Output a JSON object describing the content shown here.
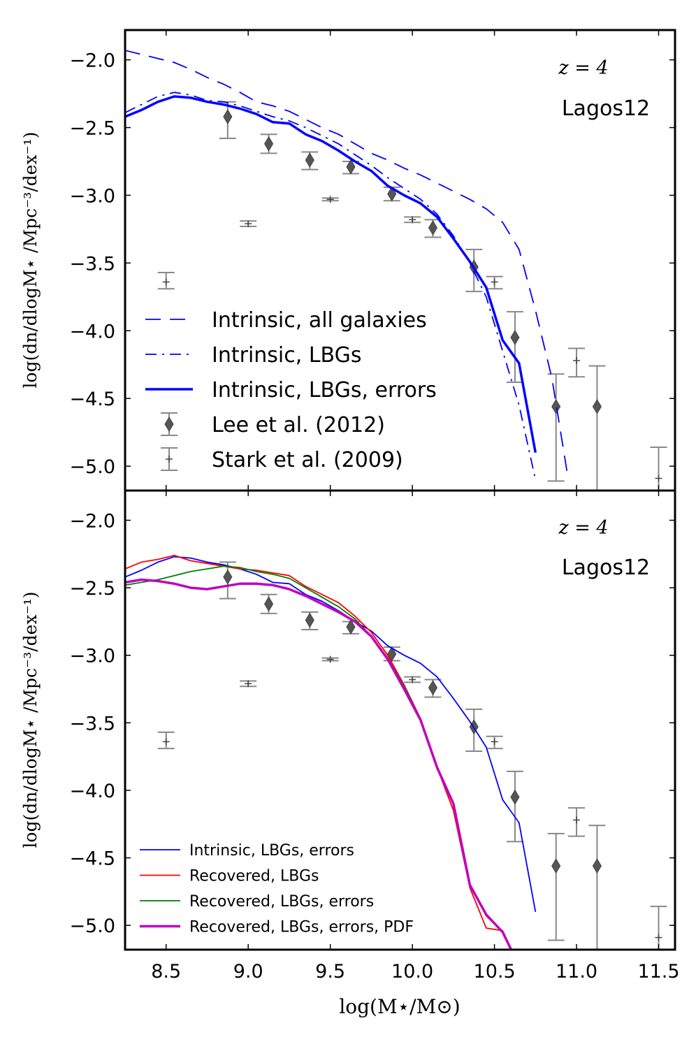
{
  "chart_data": [
    {
      "type": "line",
      "panel": "top",
      "xlim": [
        8.25,
        11.6
      ],
      "ylim": [
        -5.18,
        -1.78
      ],
      "xticks": [
        "8.5",
        "9.0",
        "9.5",
        "10.0",
        "10.5",
        "11.0",
        "11.5"
      ],
      "xtick_values": [
        8.5,
        9.0,
        9.5,
        10.0,
        10.5,
        11.0,
        11.5
      ],
      "yticks": [
        "−2.0",
        "−2.5",
        "−3.0",
        "−3.5",
        "−4.0",
        "−4.5",
        "−5.0"
      ],
      "ytick_values": [
        -2.0,
        -2.5,
        -3.0,
        -3.5,
        -4.0,
        -4.5,
        -5.0
      ],
      "ylabel": "log(dn/dlogM⋆ /Mpc⁻³/dex⁻¹)",
      "annotation_redshift": "z = 4",
      "annotation_model": "Lagos12",
      "series": [
        {
          "name": "Intrinsic, all galaxies",
          "color": "#0000ff",
          "style": "dashed",
          "width": 1.8,
          "x": [
            8.25,
            8.35,
            8.45,
            8.55,
            8.65,
            8.75,
            8.85,
            8.95,
            9.05,
            9.15,
            9.25,
            9.35,
            9.45,
            9.55,
            9.65,
            9.75,
            9.85,
            9.95,
            10.05,
            10.15,
            10.25,
            10.35,
            10.45,
            10.55,
            10.65,
            10.75,
            10.85,
            10.95
          ],
          "y": [
            -1.93,
            -1.96,
            -1.99,
            -2.02,
            -2.07,
            -2.13,
            -2.18,
            -2.24,
            -2.31,
            -2.34,
            -2.38,
            -2.44,
            -2.5,
            -2.55,
            -2.62,
            -2.69,
            -2.74,
            -2.8,
            -2.85,
            -2.91,
            -2.97,
            -3.03,
            -3.1,
            -3.2,
            -3.4,
            -3.85,
            -4.35,
            -5.1
          ]
        },
        {
          "name": "Intrinsic, LBGs",
          "color": "#0000ff",
          "style": "dashdot",
          "width": 1.8,
          "x": [
            8.25,
            8.35,
            8.45,
            8.55,
            8.65,
            8.75,
            8.85,
            8.95,
            9.05,
            9.15,
            9.25,
            9.35,
            9.45,
            9.55,
            9.65,
            9.75,
            9.85,
            9.95,
            10.05,
            10.15,
            10.25,
            10.35,
            10.45,
            10.55,
            10.65,
            10.75
          ],
          "y": [
            -2.39,
            -2.33,
            -2.27,
            -2.24,
            -2.26,
            -2.3,
            -2.31,
            -2.34,
            -2.38,
            -2.42,
            -2.45,
            -2.5,
            -2.56,
            -2.62,
            -2.7,
            -2.78,
            -2.87,
            -2.95,
            -3.03,
            -3.14,
            -3.3,
            -3.5,
            -3.75,
            -4.15,
            -4.55,
            -5.1
          ]
        },
        {
          "name": "Intrinsic, LBGs, errors",
          "color": "#0000ff",
          "style": "solid",
          "width": 3.5,
          "x": [
            8.25,
            8.35,
            8.45,
            8.55,
            8.65,
            8.75,
            8.85,
            8.95,
            9.05,
            9.15,
            9.25,
            9.35,
            9.45,
            9.55,
            9.65,
            9.75,
            9.85,
            9.95,
            10.05,
            10.15,
            10.25,
            10.35,
            10.45,
            10.55,
            10.65,
            10.75
          ],
          "y": [
            -2.42,
            -2.37,
            -2.31,
            -2.27,
            -2.28,
            -2.31,
            -2.33,
            -2.36,
            -2.4,
            -2.46,
            -2.47,
            -2.55,
            -2.6,
            -2.67,
            -2.75,
            -2.82,
            -2.93,
            -3.0,
            -3.06,
            -3.16,
            -3.32,
            -3.49,
            -3.68,
            -4.07,
            -4.24,
            -4.9
          ]
        }
      ],
      "errorbar_series": [
        {
          "name": "Lee et al. (2012)",
          "marker": "diamond",
          "color": "#555555",
          "x": [
            8.875,
            9.125,
            9.375,
            9.625,
            9.875,
            10.125,
            10.375,
            10.625,
            10.875,
            11.125
          ],
          "y": [
            -2.42,
            -2.62,
            -2.74,
            -2.79,
            -2.99,
            -3.24,
            -3.53,
            -4.05,
            -4.56,
            -4.56
          ],
          "yerr_low": [
            0.16,
            0.07,
            0.07,
            0.05,
            0.05,
            0.07,
            0.18,
            0.33,
            0.55,
            0.7
          ],
          "yerr_high": [
            0.11,
            0.07,
            0.06,
            0.04,
            0.05,
            0.06,
            0.13,
            0.19,
            0.24,
            0.3
          ]
        },
        {
          "name": "Stark et al. (2009)",
          "marker": "plus",
          "color": "#555555",
          "x": [
            8.5,
            9.0,
            9.5,
            10.0,
            10.5,
            11.0,
            11.5
          ],
          "y": [
            -3.64,
            -3.21,
            -3.03,
            -3.18,
            -3.64,
            -4.22,
            -5.09
          ],
          "yerr_low": [
            0.05,
            0.02,
            0.01,
            0.02,
            0.05,
            0.12,
            0.25
          ],
          "yerr_high": [
            0.07,
            0.02,
            0.01,
            0.02,
            0.04,
            0.09,
            0.23
          ]
        }
      ],
      "legend": {
        "placement": "lower-left",
        "entries": [
          "Intrinsic, all galaxies",
          "Intrinsic, LBGs",
          "Intrinsic, LBGs, errors",
          "Lee et al. (2012)",
          "Stark et al. (2009)"
        ]
      }
    },
    {
      "type": "line",
      "panel": "bottom",
      "xlim": [
        8.25,
        11.6
      ],
      "ylim": [
        -5.18,
        -1.78
      ],
      "xticks": [
        "8.5",
        "9.0",
        "9.5",
        "10.0",
        "10.5",
        "11.0",
        "11.5"
      ],
      "xtick_values": [
        8.5,
        9.0,
        9.5,
        10.0,
        10.5,
        11.0,
        11.5
      ],
      "yticks": [
        "−2.0",
        "−2.5",
        "−3.0",
        "−3.5",
        "−4.0",
        "−4.5",
        "−5.0"
      ],
      "ytick_values": [
        -2.0,
        -2.5,
        -3.0,
        -3.5,
        -4.0,
        -4.5,
        -5.0
      ],
      "xlabel": "log(M⋆/M⊙)",
      "ylabel": "log(dn/dlogM⋆ /Mpc⁻³/dex⁻¹)",
      "annotation_redshift": "z = 4",
      "annotation_model": "Lagos12",
      "series": [
        {
          "name": "Intrinsic, LBGs, errors",
          "color": "#0000ff",
          "style": "solid",
          "width": 1.8,
          "x": [
            8.25,
            8.35,
            8.45,
            8.55,
            8.65,
            8.75,
            8.85,
            8.95,
            9.05,
            9.15,
            9.25,
            9.35,
            9.45,
            9.55,
            9.65,
            9.75,
            9.85,
            9.95,
            10.05,
            10.15,
            10.25,
            10.35,
            10.45,
            10.55,
            10.65,
            10.75
          ],
          "y": [
            -2.42,
            -2.37,
            -2.31,
            -2.27,
            -2.28,
            -2.31,
            -2.33,
            -2.36,
            -2.4,
            -2.46,
            -2.47,
            -2.55,
            -2.6,
            -2.67,
            -2.75,
            -2.82,
            -2.93,
            -3.0,
            -3.06,
            -3.16,
            -3.32,
            -3.49,
            -3.68,
            -4.07,
            -4.24,
            -4.9
          ]
        },
        {
          "name": "Recovered, LBGs",
          "color": "#ff0000",
          "style": "solid",
          "width": 1.8,
          "x": [
            8.25,
            8.35,
            8.45,
            8.55,
            8.65,
            8.75,
            8.85,
            8.95,
            9.05,
            9.15,
            9.25,
            9.35,
            9.45,
            9.55,
            9.65,
            9.75,
            9.85,
            9.95,
            10.05,
            10.15,
            10.25,
            10.35,
            10.45,
            10.55,
            10.65
          ],
          "y": [
            -2.36,
            -2.31,
            -2.29,
            -2.26,
            -2.3,
            -2.32,
            -2.34,
            -2.36,
            -2.37,
            -2.39,
            -2.41,
            -2.49,
            -2.55,
            -2.61,
            -2.71,
            -2.83,
            -3.0,
            -3.22,
            -3.47,
            -3.83,
            -4.15,
            -4.72,
            -5.02,
            -5.04,
            -5.3
          ]
        },
        {
          "name": "Recovered, LBGs, errors",
          "color": "#008000",
          "style": "solid",
          "width": 1.8,
          "x": [
            8.25,
            8.35,
            8.45,
            8.55,
            8.65,
            8.75,
            8.85,
            8.95,
            9.05,
            9.15,
            9.25,
            9.35,
            9.45,
            9.55,
            9.65,
            9.75,
            9.85,
            9.95,
            10.05,
            10.15,
            10.25,
            10.35,
            10.45,
            10.55,
            10.65
          ],
          "y": [
            -2.48,
            -2.46,
            -2.44,
            -2.41,
            -2.38,
            -2.36,
            -2.34,
            -2.35,
            -2.38,
            -2.4,
            -2.43,
            -2.5,
            -2.57,
            -2.64,
            -2.73,
            -2.86,
            -3.02,
            -3.23,
            -3.47,
            -3.83,
            -4.1,
            -4.7,
            -4.93,
            -5.05,
            -5.3
          ]
        },
        {
          "name": "Recovered, LBGs, errors, PDF",
          "color": "#c000c0",
          "style": "solid",
          "width": 3.5,
          "x": [
            8.25,
            8.35,
            8.45,
            8.55,
            8.65,
            8.75,
            8.85,
            8.95,
            9.05,
            9.15,
            9.25,
            9.35,
            9.45,
            9.55,
            9.65,
            9.75,
            9.85,
            9.95,
            10.05,
            10.15,
            10.25,
            10.35,
            10.45,
            10.55,
            10.65
          ],
          "y": [
            -2.46,
            -2.44,
            -2.45,
            -2.47,
            -2.5,
            -2.51,
            -2.49,
            -2.47,
            -2.47,
            -2.48,
            -2.51,
            -2.56,
            -2.62,
            -2.68,
            -2.75,
            -2.86,
            -3.03,
            -3.25,
            -3.48,
            -3.83,
            -4.1,
            -4.7,
            -4.92,
            -5.05,
            -5.3
          ]
        }
      ],
      "errorbar_series": [
        {
          "name": "Lee et al. (2012)",
          "marker": "diamond",
          "color": "#555555",
          "x": [
            8.875,
            9.125,
            9.375,
            9.625,
            9.875,
            10.125,
            10.375,
            10.625,
            10.875,
            11.125
          ],
          "y": [
            -2.42,
            -2.62,
            -2.74,
            -2.79,
            -2.99,
            -3.24,
            -3.53,
            -4.05,
            -4.56,
            -4.56
          ],
          "yerr_low": [
            0.16,
            0.07,
            0.07,
            0.05,
            0.05,
            0.07,
            0.18,
            0.33,
            0.55,
            0.7
          ],
          "yerr_high": [
            0.11,
            0.07,
            0.06,
            0.04,
            0.05,
            0.06,
            0.13,
            0.19,
            0.24,
            0.3
          ]
        },
        {
          "name": "Stark et al. (2009)",
          "marker": "plus",
          "color": "#555555",
          "x": [
            8.5,
            9.0,
            9.5,
            10.0,
            10.5,
            11.0,
            11.5
          ],
          "y": [
            -3.64,
            -3.21,
            -3.03,
            -3.18,
            -3.64,
            -4.22,
            -5.09
          ],
          "yerr_low": [
            0.05,
            0.02,
            0.01,
            0.02,
            0.05,
            0.12,
            0.25
          ],
          "yerr_high": [
            0.07,
            0.02,
            0.01,
            0.02,
            0.04,
            0.09,
            0.23
          ]
        }
      ],
      "legend": {
        "placement": "lower-left",
        "entries": [
          "Intrinsic, LBGs, errors",
          "Recovered, LBGs",
          "Recovered, LBGs, errors",
          "Recovered, LBGs, errors, PDF"
        ]
      }
    }
  ]
}
